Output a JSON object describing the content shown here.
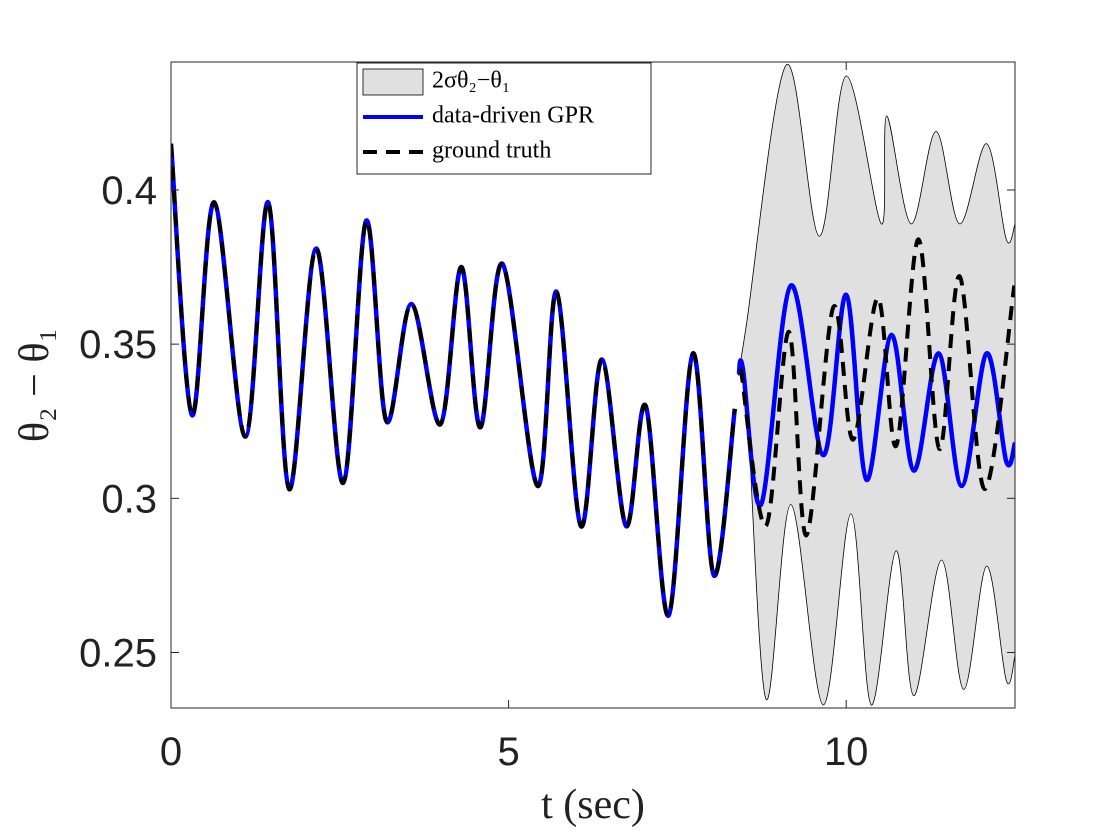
{
  "chart_data": {
    "type": "line",
    "xlabel": "t (sec)",
    "ylabel": "θ₂ − θ₁",
    "xlim": [
      0,
      12.5
    ],
    "ylim": [
      0.232,
      0.4415
    ],
    "xticks": [
      0,
      5,
      10
    ],
    "yticks": [
      0.25,
      0.3,
      0.35,
      0.4
    ],
    "legend": "top",
    "band": {
      "name": "2σθ₂−θ₁",
      "color": "#e0e0e0",
      "upper": {
        "x": [
          8.4,
          8.52,
          9.11,
          9.6,
          10.0,
          10.52,
          10.6,
          10.96,
          11.33,
          11.68,
          12.08,
          12.37,
          12.5
        ],
        "values": [
          0.34,
          0.356,
          0.4405,
          0.385,
          0.437,
          0.389,
          0.424,
          0.389,
          0.419,
          0.389,
          0.415,
          0.384,
          0.389
        ]
      },
      "lower": {
        "x": [
          8.4,
          8.52,
          8.81,
          9.18,
          9.66,
          10.07,
          10.37,
          10.74,
          11.0,
          11.41,
          11.74,
          12.08,
          12.37,
          12.5
        ],
        "values": [
          0.34,
          0.334,
          0.235,
          0.298,
          0.233,
          0.295,
          0.233,
          0.283,
          0.236,
          0.28,
          0.238,
          0.278,
          0.241,
          0.249
        ]
      }
    },
    "series": [
      {
        "name": "data-driven GPR",
        "color": "#0000ff",
        "style": "solid",
        "x": [
          0,
          0.31,
          0.64,
          1.1,
          1.44,
          1.75,
          2.15,
          2.55,
          2.89,
          3.19,
          3.56,
          3.99,
          4.3,
          4.58,
          4.91,
          5.43,
          5.71,
          6.07,
          6.38,
          6.74,
          7.03,
          7.37,
          7.73,
          8.04,
          8.35,
          8.38,
          8.41,
          8.47,
          8.74,
          9.18,
          9.66,
          10.0,
          10.3,
          10.67,
          11.0,
          11.37,
          11.71,
          12.08,
          12.37,
          12.5
        ],
        "values": [
          0.415,
          0.327,
          0.396,
          0.32,
          0.396,
          0.303,
          0.381,
          0.305,
          0.39,
          0.325,
          0.363,
          0.324,
          0.375,
          0.323,
          0.376,
          0.304,
          0.367,
          0.291,
          0.345,
          0.291,
          0.33,
          0.262,
          0.347,
          0.275,
          0.329,
          null,
          0.34,
          0.342,
          0.298,
          0.369,
          0.314,
          0.366,
          0.306,
          0.353,
          0.309,
          0.347,
          0.304,
          0.347,
          0.312,
          0.318
        ]
      },
      {
        "name": "ground truth",
        "color": "#000000",
        "style": "dashed",
        "x": [
          0,
          0.31,
          0.64,
          1.1,
          1.44,
          1.75,
          2.15,
          2.55,
          2.89,
          3.19,
          3.56,
          3.99,
          4.3,
          4.58,
          4.91,
          5.43,
          5.71,
          6.07,
          6.38,
          6.74,
          7.03,
          7.37,
          7.73,
          8.04,
          8.35,
          8.38,
          8.44,
          8.81,
          9.15,
          9.41,
          9.81,
          10.1,
          10.47,
          10.74,
          11.07,
          11.38,
          11.68,
          12.05,
          12.49
        ],
        "values": [
          0.415,
          0.327,
          0.396,
          0.32,
          0.396,
          0.303,
          0.381,
          0.305,
          0.39,
          0.325,
          0.363,
          0.324,
          0.375,
          0.323,
          0.376,
          0.304,
          0.367,
          0.291,
          0.345,
          0.291,
          0.33,
          0.262,
          0.347,
          0.275,
          0.329,
          null,
          0.342,
          0.291,
          0.354,
          0.288,
          0.362,
          0.319,
          0.365,
          0.317,
          0.384,
          0.316,
          0.372,
          0.303,
          0.369
        ]
      }
    ]
  }
}
